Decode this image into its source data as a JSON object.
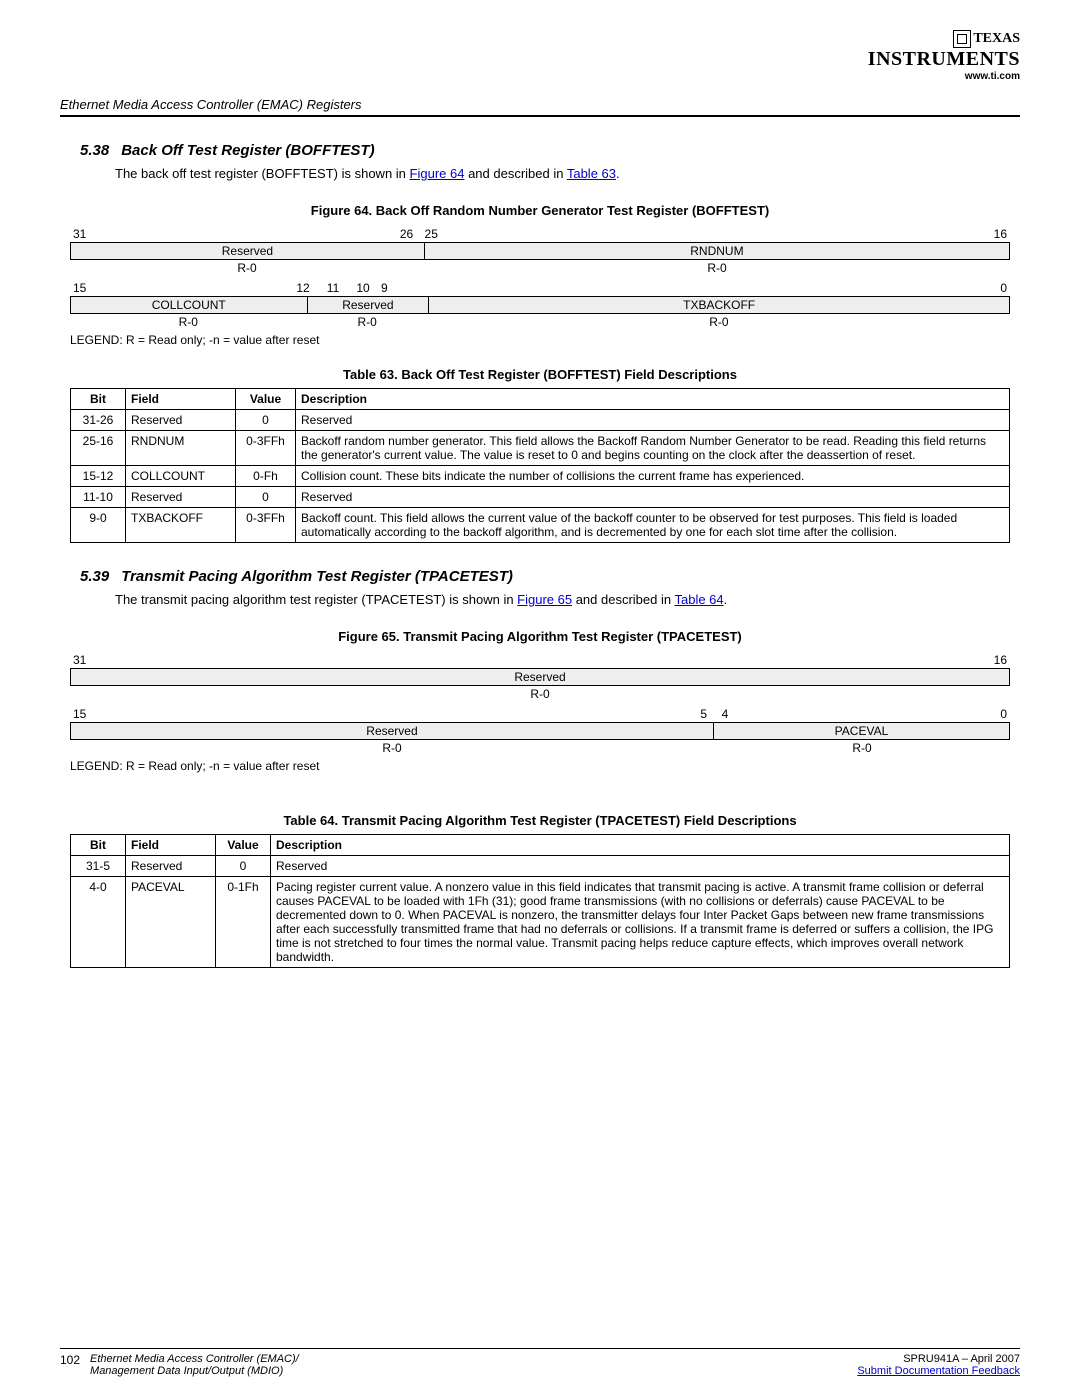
{
  "header": {
    "logo_top": "TEXAS",
    "logo_bottom": "INSTRUMENTS",
    "url": "www.ti.com"
  },
  "breadcrumb": "Ethernet Media Access Controller (EMAC) Registers",
  "section1": {
    "num": "5.38",
    "title": "Back Off Test Register (BOFFTEST)",
    "intro_pre": "The back off test register (BOFFTEST) is shown in ",
    "fig_link": "Figure 64",
    "intro_mid": " and described in ",
    "tbl_link": "Table 63",
    "intro_post": ".",
    "fig_caption": "Figure 64. Back Off Random Number Generator Test Register (BOFFTEST)",
    "reg_upper": {
      "bits": [
        "31",
        "26",
        "25",
        "16"
      ],
      "fields": [
        {
          "label": "Reserved",
          "rw": "R-0",
          "span": 6
        },
        {
          "label": "RNDNUM",
          "rw": "R-0",
          "span": 10
        }
      ]
    },
    "reg_lower": {
      "bits": [
        "15",
        "12",
        "11",
        "10",
        "9",
        "0"
      ],
      "fields": [
        {
          "label": "COLLCOUNT",
          "rw": "R-0",
          "span": 4
        },
        {
          "label": "Reserved",
          "rw": "R-0",
          "span": 2
        },
        {
          "label": "TXBACKOFF",
          "rw": "R-0",
          "span": 10
        }
      ]
    },
    "legend": "LEGEND: R = Read only; -n = value after reset",
    "tbl_caption": "Table 63. Back Off Test Register (BOFFTEST) Field Descriptions",
    "table": {
      "headers": [
        "Bit",
        "Field",
        "Value",
        "Description"
      ],
      "rows": [
        [
          "31-26",
          "Reserved",
          "0",
          "Reserved"
        ],
        [
          "25-16",
          "RNDNUM",
          "0-3FFh",
          "Backoff random number generator. This field allows the Backoff Random Number Generator to be read. Reading this field returns the generator's current value. The value is reset to 0 and begins counting on the clock after the deassertion of reset."
        ],
        [
          "15-12",
          "COLLCOUNT",
          "0-Fh",
          "Collision count. These bits indicate the number of collisions the current frame has experienced."
        ],
        [
          "11-10",
          "Reserved",
          "0",
          "Reserved"
        ],
        [
          "9-0",
          "TXBACKOFF",
          "0-3FFh",
          "Backoff count. This field allows the current value of the backoff counter to be observed for test purposes. This field is loaded automatically according to the backoff algorithm, and is decremented by one for each slot time after the collision."
        ]
      ]
    }
  },
  "section2": {
    "num": "5.39",
    "title": "Transmit Pacing Algorithm Test Register (TPACETEST)",
    "intro_pre": "The transmit pacing algorithm test register (TPACETEST) is shown in ",
    "fig_link": "Figure 65",
    "intro_mid": " and described in ",
    "tbl_link": "Table 64",
    "intro_post": ".",
    "fig_caption": "Figure 65. Transmit Pacing Algorithm Test Register (TPACETEST)",
    "reg_upper": {
      "bits": [
        "31",
        "16"
      ],
      "fields": [
        {
          "label": "Reserved",
          "rw": "R-0",
          "span": 16
        }
      ]
    },
    "reg_lower": {
      "bits": [
        "15",
        "5",
        "4",
        "0"
      ],
      "fields": [
        {
          "label": "Reserved",
          "rw": "R-0",
          "span": 11
        },
        {
          "label": "PACEVAL",
          "rw": "R-0",
          "span": 5
        }
      ]
    },
    "legend": "LEGEND: R = Read only; -n = value after reset",
    "tbl_caption": "Table 64. Transmit Pacing Algorithm Test Register (TPACETEST) Field Descriptions",
    "table": {
      "headers": [
        "Bit",
        "Field",
        "Value",
        "Description"
      ],
      "rows": [
        [
          "31-5",
          "Reserved",
          "0",
          "Reserved"
        ],
        [
          "4-0",
          "PACEVAL",
          "0-1Fh",
          "Pacing register current value. A nonzero value in this field indicates that transmit pacing is active. A transmit frame collision or deferral causes PACEVAL to be loaded with 1Fh (31); good frame transmissions (with no collisions or deferrals) cause PACEVAL to be decremented down to 0. When PACEVAL is nonzero, the transmitter delays four Inter Packet Gaps between new frame transmissions after each successfully transmitted frame that had no deferrals or collisions. If a transmit frame is deferred or suffers a collision, the IPG time is not stretched to four times the normal value. Transmit pacing helps reduce capture effects, which improves overall network bandwidth."
        ]
      ]
    }
  },
  "footer": {
    "page": "102",
    "title1": "Ethernet Media Access Controller (EMAC)/",
    "title2": "Management Data Input/Output (MDIO)",
    "docid": "SPRU941A – April 2007",
    "feedback": "Submit Documentation Feedback"
  },
  "colors": {
    "link": "#0000cc",
    "field_bg": "#eeeeee",
    "border": "#000000",
    "text": "#000000"
  }
}
